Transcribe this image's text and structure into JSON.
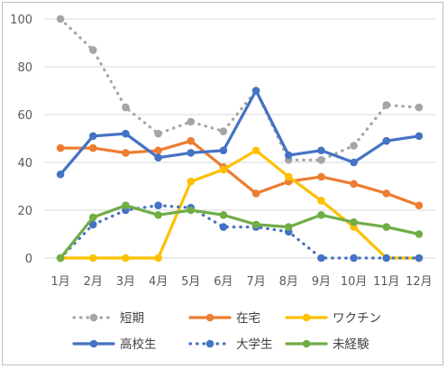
{
  "chart_data": {
    "type": "line",
    "title": "",
    "xlabel": "",
    "ylabel": "",
    "categories": [
      "1月",
      "2月",
      "3月",
      "4月",
      "5月",
      "6月",
      "7月",
      "8月",
      "9月",
      "10月",
      "11月",
      "12月"
    ],
    "ylim": [
      0,
      100
    ],
    "yticks": [
      0,
      20,
      40,
      60,
      80,
      100
    ],
    "grid": true,
    "legend_position": "bottom",
    "series": [
      {
        "name": "短期",
        "color": "#a5a5a5",
        "dashed": true,
        "values": [
          100,
          87,
          63,
          52,
          57,
          53,
          70,
          41,
          41,
          47,
          64,
          63
        ]
      },
      {
        "name": "在宅",
        "color": "#ed7d31",
        "dashed": false,
        "values": [
          46,
          46,
          44,
          45,
          49,
          38,
          27,
          32,
          34,
          31,
          27,
          22
        ]
      },
      {
        "name": "ワクチン",
        "color": "#ffc000",
        "dashed": false,
        "values": [
          0,
          0,
          0,
          0,
          32,
          37,
          45,
          34,
          24,
          13,
          0,
          0
        ]
      },
      {
        "name": "高校生",
        "color": "#4472c4",
        "dashed": false,
        "values": [
          35,
          51,
          52,
          42,
          44,
          45,
          70,
          43,
          45,
          40,
          49,
          51
        ]
      },
      {
        "name": "大学生",
        "color": "#4472c4",
        "dashed": true,
        "values": [
          0,
          14,
          20,
          22,
          21,
          13,
          13,
          11,
          0,
          0,
          0,
          0
        ]
      },
      {
        "name": "未経験",
        "color": "#70ad47",
        "dashed": false,
        "values": [
          0,
          17,
          22,
          18,
          20,
          18,
          14,
          13,
          18,
          15,
          13,
          10
        ]
      }
    ]
  }
}
